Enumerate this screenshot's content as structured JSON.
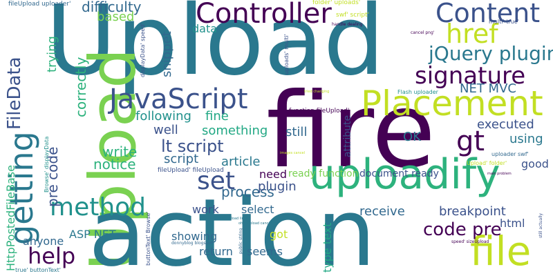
{
  "palette": {
    "teal": "#2a788e",
    "purple": "#440154",
    "indigo": "#3b528b",
    "green": "#22a884",
    "lime": "#c2df23",
    "lightgreen": "#7ad151",
    "seagreen": "#2db27d",
    "blue": "#31688e",
    "darkteal": "#21918c"
  },
  "words": [
    "Upload",
    "fire",
    "action",
    "uploadify",
    "Placement",
    "Controller",
    "Content",
    "file",
    "href",
    "getting",
    "signature",
    "method",
    "JavaScript",
    "jQuery plugin",
    "gt",
    "FileData",
    "help",
    "set",
    "code pre",
    "NET MVC",
    "lt script",
    "pre code",
    "executed",
    "process",
    "write",
    "notice",
    "correctly",
    "difficulty",
    "based",
    "snippet",
    "data",
    "trying",
    "well",
    "something",
    "following",
    "fine",
    "still",
    "OK",
    "using",
    "good",
    "article",
    "script",
    "need",
    "ready function",
    "document ready",
    "plugin",
    "receive",
    "breakpoint",
    "work",
    "select",
    "html",
    "ASP NET",
    "anyone",
    "showing",
    "return",
    "seems",
    "got",
    "HttpPostedFileBase",
    "type text",
    "attribute",
    "fileUpload uploader'",
    "folder' uploads'",
    "swf' script'",
    "handle dealing",
    "multi' true'",
    "cancel png'",
    "displayData' speed'",
    "uploads' multi'",
    "function fileUpload'",
    "Flash uploader",
    "uploader swf'",
    "Upload' folder'",
    "fileUpload' fileUpload",
    "Browse' displayData",
    "buttonText' Browse'",
    "true' buttonText'",
    "donnyblog blogspot",
    "public string",
    "speed' sizeUpload",
    "still actually",
    "main problem",
    "tried changing",
    "images cancel",
    "sizeUpload limit",
    "ohbbUpload cancelImg"
  ]
}
